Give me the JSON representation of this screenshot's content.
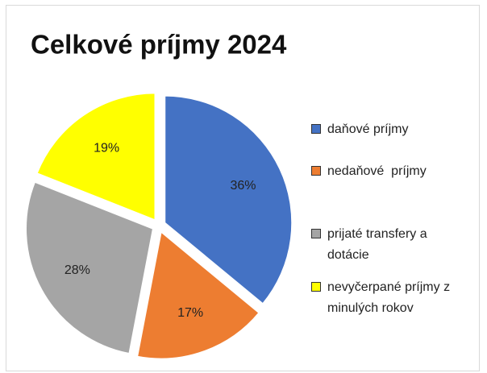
{
  "chart_data": {
    "type": "pie",
    "title": "Celkové príjmy 2024",
    "categories": [
      "daňové príjmy",
      "nedaňové  príjmy",
      "prijaté transfery a dotácie",
      "nevyčerpané príjmy z minulých rokov"
    ],
    "values": [
      36,
      17,
      28,
      19
    ],
    "value_labels": [
      "36%",
      "17%",
      "28%",
      "19%"
    ],
    "colors": [
      "#4472c4",
      "#ed7d31",
      "#a5a5a5",
      "#ffff00"
    ],
    "legend": "right"
  }
}
